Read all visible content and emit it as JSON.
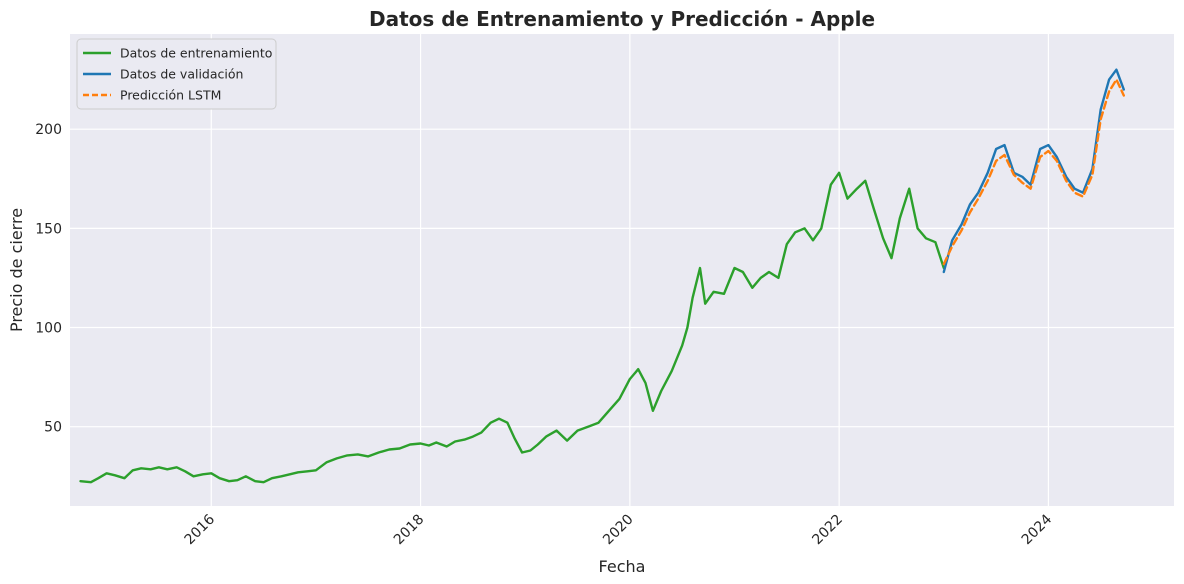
{
  "chart_data": {
    "type": "line",
    "title": "Datos de Entrenamiento y Predicción - Apple",
    "xlabel": "Fecha",
    "ylabel": "Precio de cierre",
    "xlim": [
      2014.65,
      2025.2
    ],
    "ylim": [
      10,
      248
    ],
    "x_ticks": [
      2016,
      2018,
      2020,
      2022,
      2024
    ],
    "x_tick_labels": [
      "2016",
      "2018",
      "2020",
      "2022",
      "2024"
    ],
    "y_ticks": [
      50,
      100,
      150,
      200
    ],
    "y_tick_labels": [
      "50",
      "100",
      "150",
      "200"
    ],
    "grid": true,
    "legend_position": "top-left",
    "series": [
      {
        "name": "Datos de entrenamiento",
        "color": "#2ca02c",
        "style": "solid",
        "points": [
          [
            2014.75,
            22.5
          ],
          [
            2014.85,
            22
          ],
          [
            2014.92,
            24
          ],
          [
            2015.0,
            26.5
          ],
          [
            2015.08,
            25.5
          ],
          [
            2015.17,
            24
          ],
          [
            2015.25,
            28
          ],
          [
            2015.33,
            29
          ],
          [
            2015.42,
            28.5
          ],
          [
            2015.5,
            29.5
          ],
          [
            2015.58,
            28.5
          ],
          [
            2015.67,
            29.5
          ],
          [
            2015.75,
            27.5
          ],
          [
            2015.83,
            25
          ],
          [
            2015.92,
            26
          ],
          [
            2016.0,
            26.5
          ],
          [
            2016.08,
            24
          ],
          [
            2016.17,
            22.5
          ],
          [
            2016.25,
            23
          ],
          [
            2016.33,
            25
          ],
          [
            2016.42,
            22.5
          ],
          [
            2016.5,
            22
          ],
          [
            2016.58,
            24
          ],
          [
            2016.67,
            25
          ],
          [
            2016.75,
            26
          ],
          [
            2016.83,
            27
          ],
          [
            2016.92,
            27.5
          ],
          [
            2017.0,
            28
          ],
          [
            2017.1,
            32
          ],
          [
            2017.2,
            34
          ],
          [
            2017.3,
            35.5
          ],
          [
            2017.4,
            36
          ],
          [
            2017.5,
            35
          ],
          [
            2017.6,
            37
          ],
          [
            2017.7,
            38.5
          ],
          [
            2017.8,
            39
          ],
          [
            2017.9,
            41
          ],
          [
            2018.0,
            41.5
          ],
          [
            2018.08,
            40.5
          ],
          [
            2018.15,
            42
          ],
          [
            2018.25,
            40
          ],
          [
            2018.33,
            42.5
          ],
          [
            2018.42,
            43.5
          ],
          [
            2018.5,
            45
          ],
          [
            2018.58,
            47
          ],
          [
            2018.67,
            52
          ],
          [
            2018.75,
            54
          ],
          [
            2018.83,
            52
          ],
          [
            2018.9,
            44
          ],
          [
            2018.97,
            37
          ],
          [
            2019.05,
            38
          ],
          [
            2019.12,
            41
          ],
          [
            2019.2,
            45
          ],
          [
            2019.3,
            48
          ],
          [
            2019.4,
            43
          ],
          [
            2019.5,
            48
          ],
          [
            2019.6,
            50
          ],
          [
            2019.7,
            52
          ],
          [
            2019.8,
            58
          ],
          [
            2019.9,
            64
          ],
          [
            2020.0,
            74
          ],
          [
            2020.08,
            79
          ],
          [
            2020.15,
            72
          ],
          [
            2020.22,
            58
          ],
          [
            2020.3,
            68
          ],
          [
            2020.4,
            78
          ],
          [
            2020.5,
            91
          ],
          [
            2020.55,
            100
          ],
          [
            2020.6,
            115
          ],
          [
            2020.67,
            130
          ],
          [
            2020.72,
            112
          ],
          [
            2020.8,
            118
          ],
          [
            2020.9,
            117
          ],
          [
            2021.0,
            130
          ],
          [
            2021.08,
            128
          ],
          [
            2021.17,
            120
          ],
          [
            2021.25,
            125
          ],
          [
            2021.33,
            128
          ],
          [
            2021.42,
            125
          ],
          [
            2021.5,
            142
          ],
          [
            2021.58,
            148
          ],
          [
            2021.67,
            150
          ],
          [
            2021.75,
            144
          ],
          [
            2021.83,
            150
          ],
          [
            2021.92,
            172
          ],
          [
            2022.0,
            178
          ],
          [
            2022.08,
            165
          ],
          [
            2022.17,
            170
          ],
          [
            2022.25,
            174
          ],
          [
            2022.33,
            160
          ],
          [
            2022.42,
            145
          ],
          [
            2022.5,
            135
          ],
          [
            2022.58,
            155
          ],
          [
            2022.67,
            170
          ],
          [
            2022.75,
            150
          ],
          [
            2022.83,
            145
          ],
          [
            2022.92,
            143
          ],
          [
            2023.0,
            130
          ]
        ]
      },
      {
        "name": "Datos de validación",
        "color": "#1f77b4",
        "style": "solid",
        "points": [
          [
            2023.0,
            128
          ],
          [
            2023.08,
            144
          ],
          [
            2023.17,
            152
          ],
          [
            2023.25,
            162
          ],
          [
            2023.33,
            168
          ],
          [
            2023.42,
            178
          ],
          [
            2023.5,
            190
          ],
          [
            2023.58,
            192
          ],
          [
            2023.67,
            178
          ],
          [
            2023.75,
            176
          ],
          [
            2023.83,
            172
          ],
          [
            2023.92,
            190
          ],
          [
            2024.0,
            192
          ],
          [
            2024.08,
            186
          ],
          [
            2024.17,
            176
          ],
          [
            2024.25,
            170
          ],
          [
            2024.33,
            168
          ],
          [
            2024.42,
            180
          ],
          [
            2024.5,
            210
          ],
          [
            2024.58,
            225
          ],
          [
            2024.65,
            230
          ],
          [
            2024.72,
            220
          ]
        ]
      },
      {
        "name": "Predicción LSTM",
        "color": "#ff7f0e",
        "style": "dashed",
        "points": [
          [
            2023.0,
            132
          ],
          [
            2023.08,
            141
          ],
          [
            2023.17,
            149
          ],
          [
            2023.25,
            158
          ],
          [
            2023.33,
            165
          ],
          [
            2023.42,
            174
          ],
          [
            2023.5,
            184
          ],
          [
            2023.58,
            187
          ],
          [
            2023.67,
            177
          ],
          [
            2023.75,
            173
          ],
          [
            2023.83,
            170
          ],
          [
            2023.92,
            186
          ],
          [
            2024.0,
            189
          ],
          [
            2024.08,
            184
          ],
          [
            2024.17,
            174
          ],
          [
            2024.25,
            168
          ],
          [
            2024.33,
            166
          ],
          [
            2024.42,
            177
          ],
          [
            2024.5,
            205
          ],
          [
            2024.58,
            219
          ],
          [
            2024.65,
            225
          ],
          [
            2024.72,
            217
          ]
        ]
      }
    ]
  }
}
